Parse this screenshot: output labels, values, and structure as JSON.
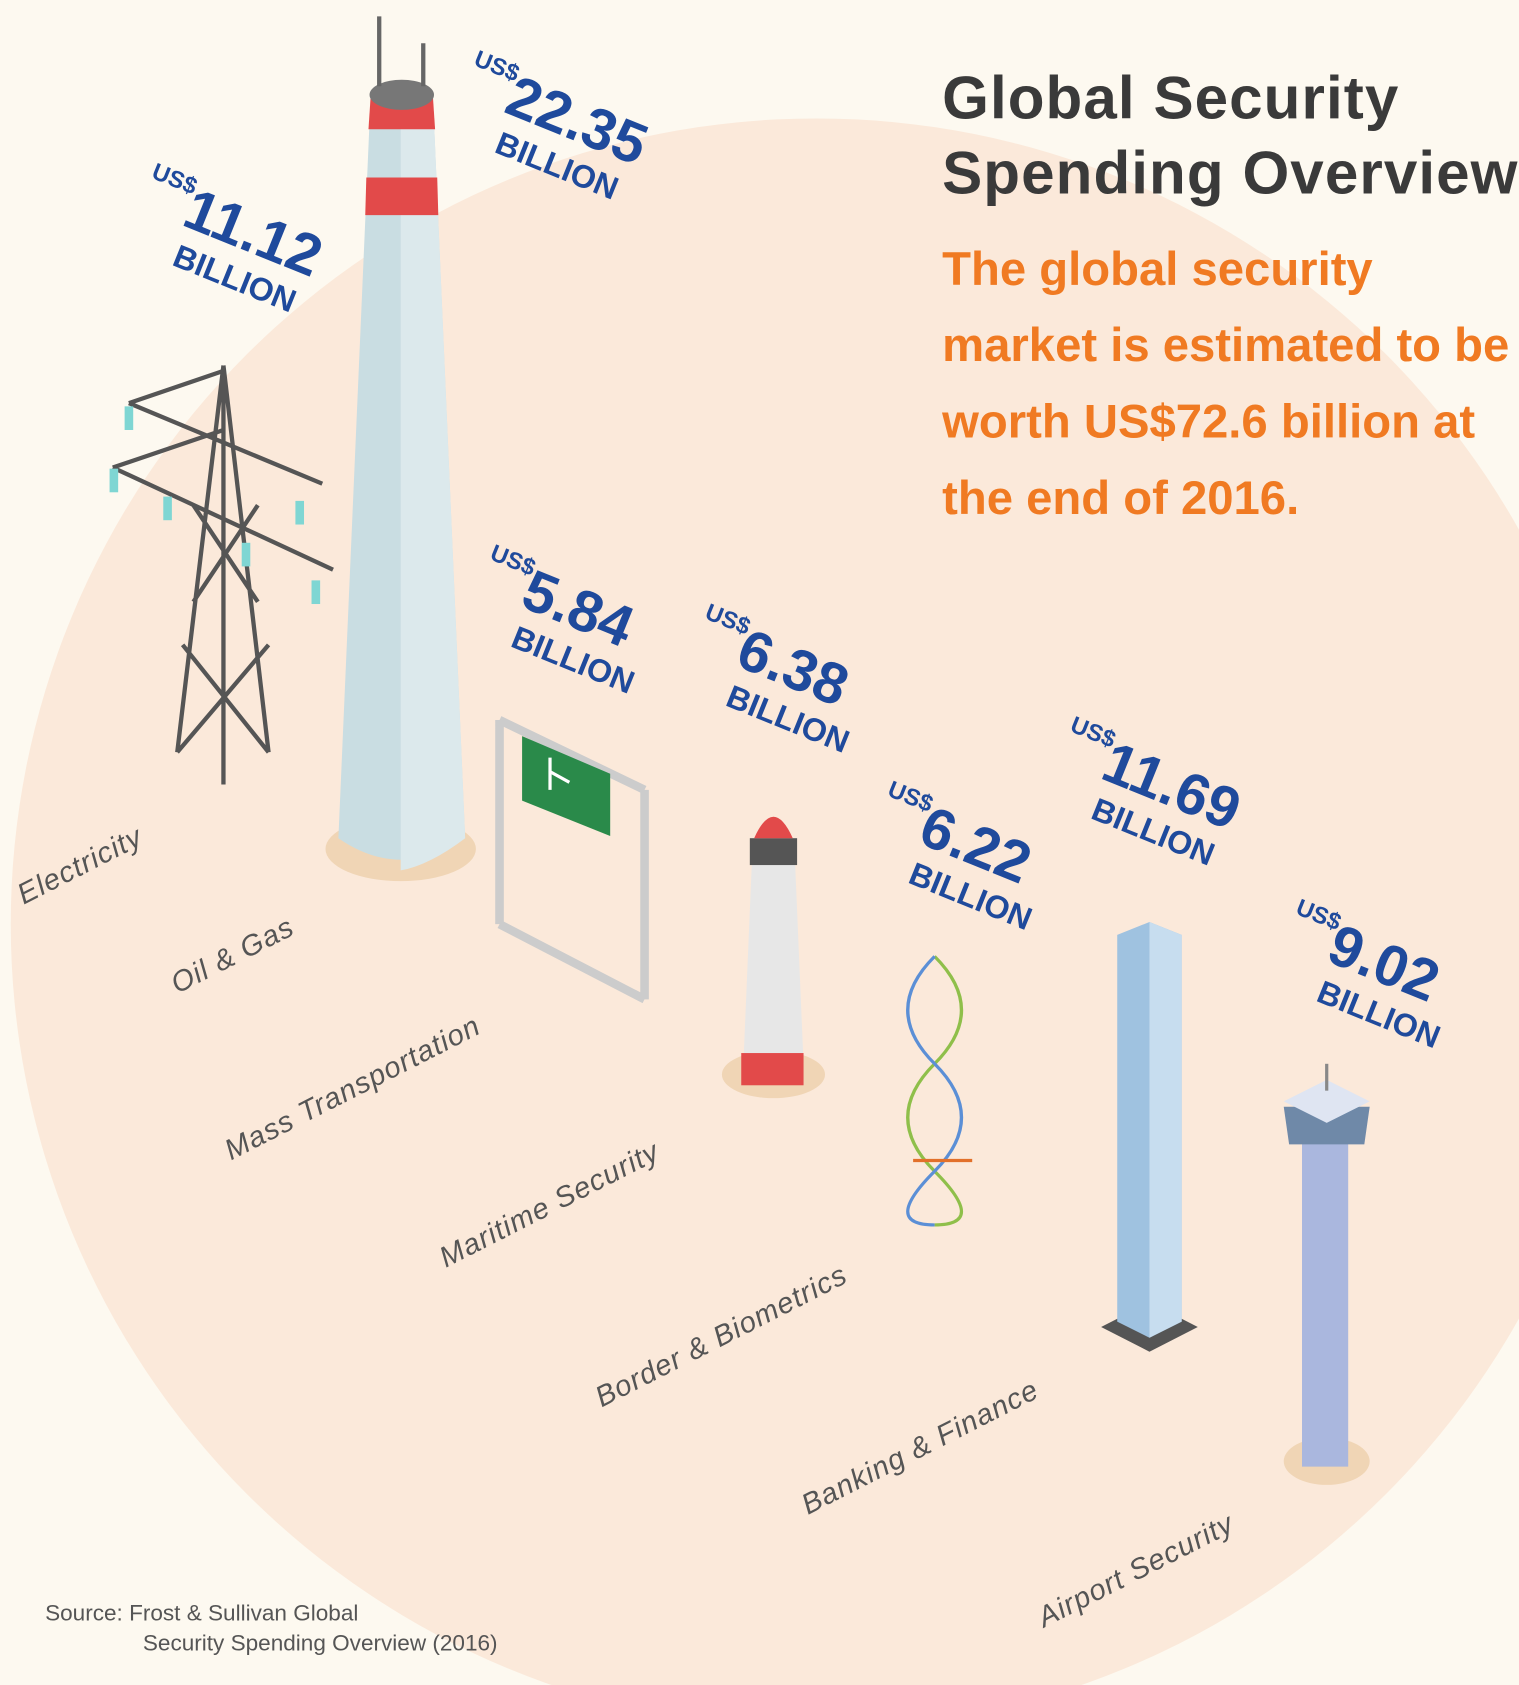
{
  "title": [
    "Global Security",
    "Spending Overview"
  ],
  "subtitle": [
    "The global security",
    "market is estimated to be",
    "worth US$72.6 billion at",
    "the end of 2016."
  ],
  "items": [
    {
      "category": "Electricity",
      "currency": "US$",
      "value": 11.12,
      "unit": "BILLION"
    },
    {
      "category": "Oil & Gas",
      "currency": "US$",
      "value": 22.35,
      "unit": "BILLION"
    },
    {
      "category": "Mass Transportation",
      "currency": "US$",
      "value": 5.84,
      "unit": "BILLION"
    },
    {
      "category": "Maritime Security",
      "currency": "US$",
      "value": 6.38,
      "unit": "BILLION"
    },
    {
      "category": "Border & Biometrics",
      "currency": "US$",
      "value": 6.22,
      "unit": "BILLION"
    },
    {
      "category": "Banking & Finance",
      "currency": "US$",
      "value": 11.69,
      "unit": "BILLION"
    },
    {
      "category": "Airport Security",
      "currency": "US$",
      "value": 9.02,
      "unit": "BILLION"
    }
  ],
  "source": [
    "Source: Frost & Sullivan Global",
    "Security Spending Overview (2016)"
  ]
}
